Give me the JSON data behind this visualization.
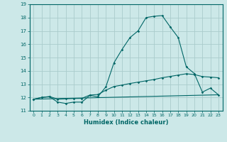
{
  "xlabel": "Humidex (Indice chaleur)",
  "bg_color": "#cce8e8",
  "grid_color": "#aacccc",
  "line_color": "#006666",
  "xlim": [
    -0.5,
    23.5
  ],
  "ylim": [
    11,
    19
  ],
  "yticks": [
    11,
    12,
    13,
    14,
    15,
    16,
    17,
    18,
    19
  ],
  "xticks": [
    0,
    1,
    2,
    3,
    4,
    5,
    6,
    7,
    8,
    9,
    10,
    11,
    12,
    13,
    14,
    15,
    16,
    17,
    18,
    19,
    20,
    21,
    22,
    23
  ],
  "line1_x": [
    0,
    1,
    2,
    3,
    4,
    5,
    6,
    7,
    8,
    9,
    10,
    11,
    12,
    13,
    14,
    15,
    16,
    17,
    18,
    19,
    20,
    21,
    22,
    23
  ],
  "line1_y": [
    11.85,
    12.0,
    12.05,
    11.65,
    11.55,
    11.65,
    11.65,
    12.15,
    12.05,
    12.8,
    14.6,
    15.6,
    16.5,
    17.0,
    18.0,
    18.1,
    18.15,
    17.3,
    16.5,
    14.3,
    13.8,
    12.4,
    12.7,
    12.2
  ],
  "line2_x": [
    0,
    1,
    2,
    3,
    4,
    5,
    6,
    7,
    8,
    9,
    10,
    11,
    12,
    13,
    14,
    15,
    16,
    17,
    18,
    19,
    20,
    21,
    22,
    23
  ],
  "line2_y": [
    11.87,
    12.0,
    12.07,
    11.87,
    11.9,
    11.92,
    11.93,
    12.18,
    12.22,
    12.55,
    12.82,
    12.93,
    13.05,
    13.15,
    13.25,
    13.35,
    13.48,
    13.58,
    13.68,
    13.78,
    13.72,
    13.57,
    13.53,
    13.48
  ],
  "line3_x": [
    0,
    23
  ],
  "line3_y": [
    11.87,
    12.2
  ]
}
